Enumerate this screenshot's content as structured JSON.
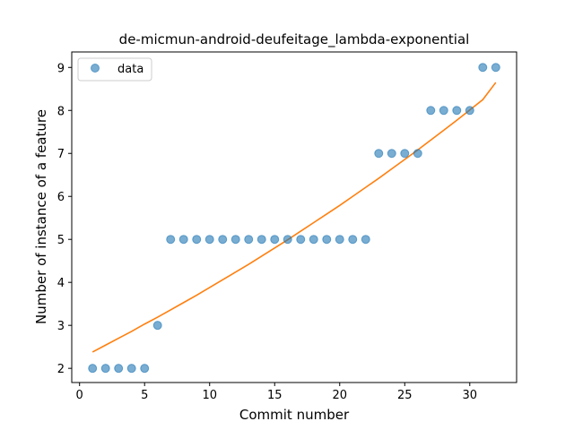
{
  "chart_data": {
    "type": "scatter",
    "title": "de-micmun-android-deufeitage_lambda-exponential",
    "xlabel": "Commit number",
    "ylabel": "Number of instance of a feature",
    "xlim": [
      -0.6,
      33.6
    ],
    "ylim": [
      1.67,
      9.36
    ],
    "xticks": [
      0,
      5,
      10,
      15,
      20,
      25,
      30
    ],
    "yticks": [
      2,
      3,
      4,
      5,
      6,
      7,
      8,
      9
    ],
    "grid": false,
    "legend": {
      "position": "upper-left",
      "entries": [
        "data"
      ]
    },
    "series": [
      {
        "name": "data",
        "kind": "scatter",
        "color": "#1f77b4",
        "x": [
          1,
          2,
          3,
          4,
          5,
          6,
          7,
          8,
          9,
          10,
          11,
          12,
          13,
          14,
          15,
          16,
          17,
          18,
          19,
          20,
          21,
          22,
          23,
          24,
          25,
          26,
          27,
          28,
          29,
          30,
          31,
          32
        ],
        "y": [
          2,
          2,
          2,
          2,
          2,
          3,
          5,
          5,
          5,
          5,
          5,
          5,
          5,
          5,
          5,
          5,
          5,
          5,
          5,
          5,
          5,
          5,
          7,
          7,
          7,
          7,
          8,
          8,
          8,
          8,
          9,
          9
        ]
      },
      {
        "kind": "line",
        "color": "#ff7f0e",
        "x": [
          1,
          2,
          3,
          4,
          5,
          6,
          7,
          8,
          9,
          10,
          11,
          12,
          13,
          14,
          15,
          16,
          17,
          18,
          19,
          20,
          21,
          22,
          23,
          24,
          25,
          26,
          27,
          28,
          29,
          30,
          31,
          32
        ],
        "y": [
          2.38,
          2.54,
          2.7,
          2.86,
          3.03,
          3.19,
          3.36,
          3.53,
          3.7,
          3.88,
          4.06,
          4.24,
          4.42,
          4.61,
          4.8,
          4.99,
          5.19,
          5.39,
          5.59,
          5.79,
          6.0,
          6.21,
          6.42,
          6.64,
          6.86,
          7.08,
          7.31,
          7.54,
          7.77,
          8.01,
          8.25,
          8.65
        ]
      }
    ]
  }
}
